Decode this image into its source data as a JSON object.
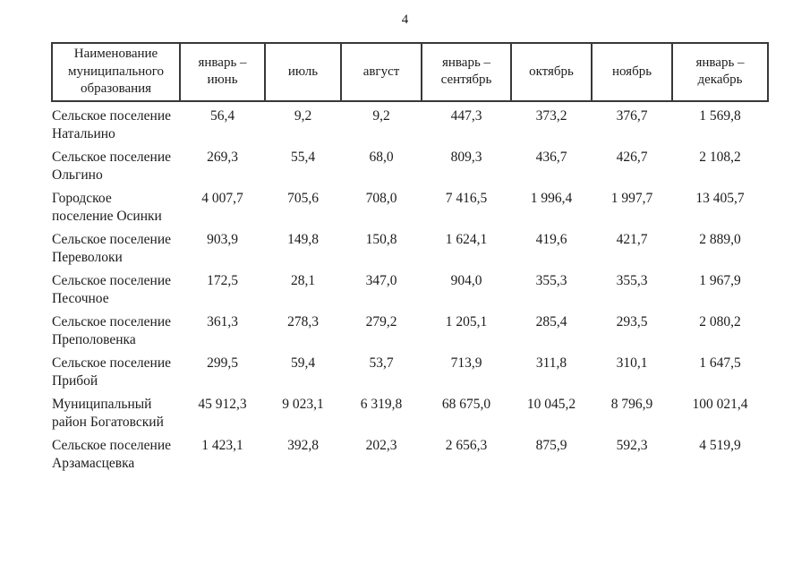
{
  "page": {
    "number": "4"
  },
  "table": {
    "headers": [
      "Наименование муниципального образования",
      "январь – июнь",
      "июль",
      "август",
      "январь – сентябрь",
      "октябрь",
      "ноябрь",
      "январь – декабрь"
    ],
    "rows": [
      {
        "name": "Сельское поселение Натальино",
        "values": [
          "56,4",
          "9,2",
          "9,2",
          "447,3",
          "373,2",
          "376,7",
          "1 569,8"
        ]
      },
      {
        "name": "Сельское поселение Ольгино",
        "values": [
          "269,3",
          "55,4",
          "68,0",
          "809,3",
          "436,7",
          "426,7",
          "2 108,2"
        ]
      },
      {
        "name": "Городское поселение Осинки",
        "values": [
          "4 007,7",
          "705,6",
          "708,0",
          "7 416,5",
          "1 996,4",
          "1 997,7",
          "13 405,7"
        ]
      },
      {
        "name": "Сельское поселение Переволоки",
        "values": [
          "903,9",
          "149,8",
          "150,8",
          "1 624,1",
          "419,6",
          "421,7",
          "2 889,0"
        ]
      },
      {
        "name": "Сельское поселение Песочное",
        "values": [
          "172,5",
          "28,1",
          "347,0",
          "904,0",
          "355,3",
          "355,3",
          "1 967,9"
        ]
      },
      {
        "name": "Сельское поселение Преполовенка",
        "values": [
          "361,3",
          "278,3",
          "279,2",
          "1 205,1",
          "285,4",
          "293,5",
          "2 080,2"
        ]
      },
      {
        "name": "Сельское поселение Прибой",
        "values": [
          "299,5",
          "59,4",
          "53,7",
          "713,9",
          "311,8",
          "310,1",
          "1 647,5"
        ]
      },
      {
        "name": "Муниципальный район Богатовский",
        "values": [
          "45 912,3",
          "9 023,1",
          "6 319,8",
          "68 675,0",
          "10 045,2",
          "8 796,9",
          "100 021,4"
        ]
      },
      {
        "name": "Сельское поселение Арзамасцевка",
        "values": [
          "1 423,1",
          "392,8",
          "202,3",
          "2 656,3",
          "875,9",
          "592,3",
          "4 519,9"
        ]
      }
    ],
    "text_color": "#1c1c1c",
    "border_color": "#383838"
  }
}
